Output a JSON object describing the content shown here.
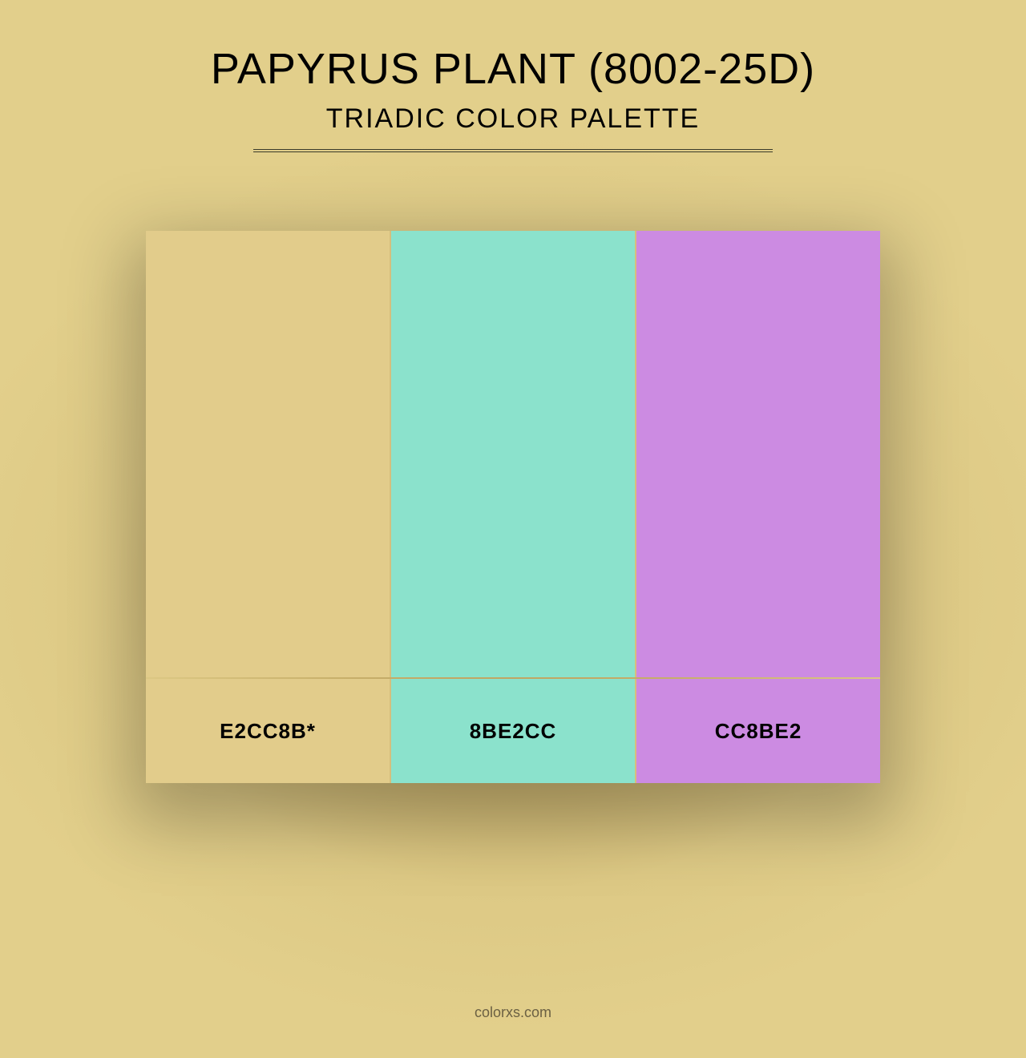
{
  "header": {
    "title": "PAPYRUS PLANT (8002-25D)",
    "subtitle": "TRIADIC COLOR PALETTE"
  },
  "palette": {
    "type": "triadic",
    "background_color": "#e2cf8b",
    "vignette_inner": "#b59a58",
    "divider_color": "#3a3a2a",
    "gap_color": "#d6be7d",
    "shadow_color": "rgba(0,0,0,0.25)",
    "title_fontsize": 54,
    "subtitle_fontsize": 34,
    "label_fontsize": 26,
    "swatches": [
      {
        "hex": "#E2CC8B",
        "label": "E2CC8B*",
        "swatch_bg": "#e2cc8b",
        "label_bg": "#e2cc8b"
      },
      {
        "hex": "#8BE2CC",
        "label": "8BE2CC",
        "swatch_bg": "#8be2cc",
        "label_bg": "#8be2cc"
      },
      {
        "hex": "#CC8BE2",
        "label": "CC8BE2",
        "swatch_bg": "#cc8be2",
        "label_bg": "#cc8be2"
      }
    ]
  },
  "footer": {
    "text": "colorxs.com",
    "color": "#6b6043"
  }
}
